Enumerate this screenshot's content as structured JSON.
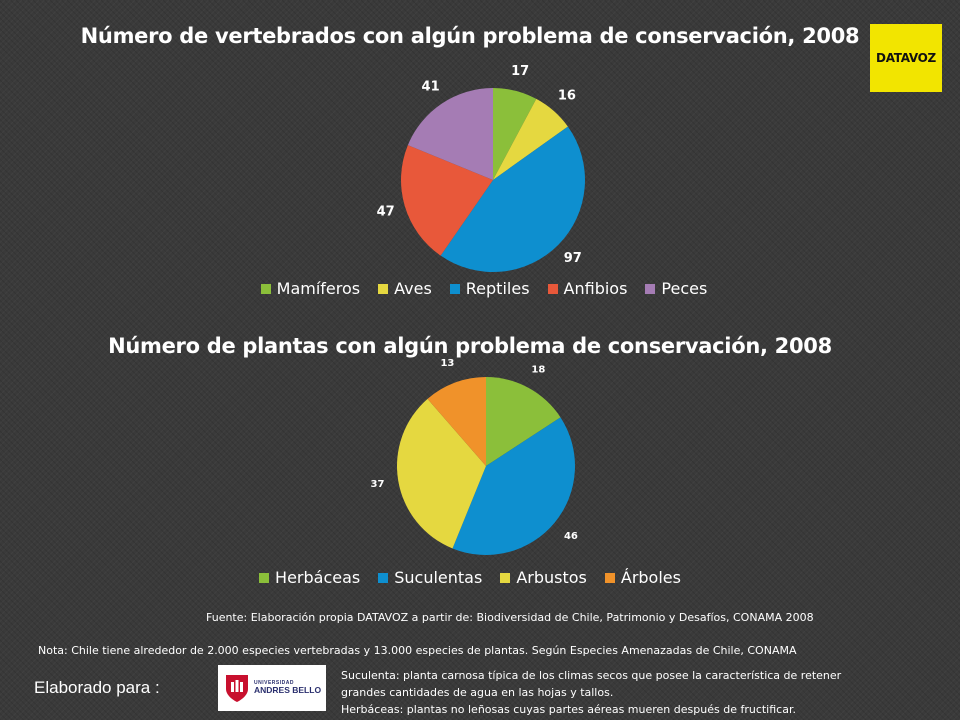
{
  "chart_data": [
    {
      "type": "pie",
      "title": "Número de vertebrados con algún problema de conservación, 2008",
      "categories": [
        "Mamíferos",
        "Aves",
        "Reptiles",
        "Anfibios",
        "Peces"
      ],
      "values": [
        17,
        16,
        97,
        47,
        41
      ],
      "colors": [
        "#8bbf3a",
        "#e5d840",
        "#0e8fcf",
        "#e8583a",
        "#a57cb4"
      ],
      "legend": "bottom",
      "data_labels": [
        "17",
        "16",
        "97",
        "47",
        "41"
      ]
    },
    {
      "type": "pie",
      "title": "Número de plantas con algún problema de conservación, 2008",
      "categories": [
        "Herbáceas",
        "Suculentas",
        "Arbustos",
        "Árboles"
      ],
      "values": [
        18,
        46,
        37,
        13
      ],
      "colors": [
        "#8bbf3a",
        "#0e8fcf",
        "#e5d840",
        "#f0922a"
      ],
      "legend": "bottom",
      "data_labels": [
        "18",
        "46",
        "37",
        "13"
      ]
    }
  ],
  "logo": {
    "text": "DATAVOZ",
    "background": "#f2e500"
  },
  "footer": {
    "source": "Fuente: Elaboración propia DATAVOZ a partir de: Biodiversidad de Chile, Patrimonio y Desafíos, CONAMA 2008",
    "note": "Nota: Chile tiene alrededor de 2.000 especies vertebradas y 13.000 especies de plantas. Según Especies Amenazadas de Chile, CONAMA",
    "made_for": "Elaborado para :",
    "university_small": "UNIVERSIDAD",
    "university_name": "ANDRES BELLO",
    "definition_1_line_1": "Suculenta: planta carnosa típica de los climas secos que posee la característica de retener",
    "definition_1_line_2": "grandes cantidades de agua en las hojas y tallos.",
    "definition_2": "Herbáceas: plantas no leñosas cuyas partes aéreas mueren después de fructificar."
  }
}
